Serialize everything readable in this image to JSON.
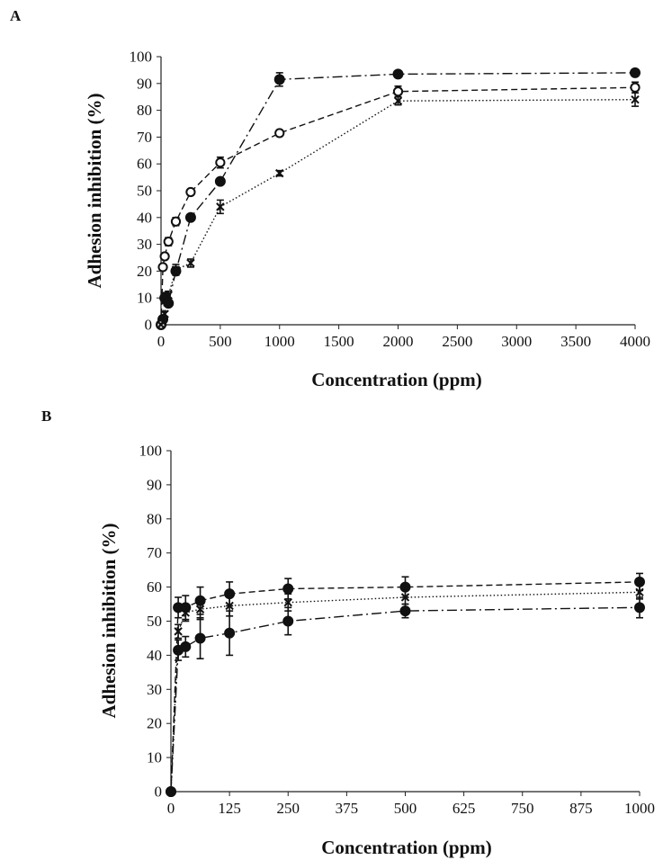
{
  "chart_data": [
    {
      "type": "line",
      "panel_label": "A",
      "xlabel": "Concentration (ppm)",
      "ylabel": "Adhesion inhibition (%)",
      "xlim": [
        0,
        4000
      ],
      "ylim": [
        0,
        100
      ],
      "x_ticks": [
        0,
        500,
        1000,
        1500,
        2000,
        2500,
        3000,
        3500,
        4000
      ],
      "y_ticks": [
        0,
        10,
        20,
        30,
        40,
        50,
        60,
        70,
        80,
        90,
        100
      ],
      "grid": false,
      "series": [
        {
          "marker": "filled-circle",
          "line_style": "dash-dot",
          "x": [
            0,
            15.6,
            31.25,
            62.5,
            125,
            250,
            500,
            1000,
            2000,
            4000
          ],
          "y": [
            0,
            2,
            10,
            8,
            20,
            40,
            53.5,
            91.5,
            93.5,
            94
          ],
          "err": [
            0,
            0.5,
            2,
            1,
            1.5,
            1,
            1,
            2.5,
            0.5,
            0.5
          ]
        },
        {
          "marker": "open-circle",
          "line_style": "dashed",
          "x": [
            0,
            15.6,
            31.25,
            62.5,
            125,
            250,
            500,
            1000,
            2000,
            4000
          ],
          "y": [
            0,
            21.5,
            25.5,
            31,
            38.5,
            49.5,
            60.5,
            71.5,
            87,
            88.5
          ],
          "err": [
            0,
            1,
            1,
            1.5,
            1.5,
            1,
            2,
            1,
            2,
            2
          ]
        },
        {
          "marker": "cross",
          "line_style": "dotted",
          "x": [
            0,
            15.6,
            31.25,
            62.5,
            125,
            250,
            500,
            1000,
            2000,
            4000
          ],
          "y": [
            0,
            1,
            4,
            11,
            20.5,
            23,
            44,
            56.5,
            83.5,
            84
          ],
          "err": [
            0,
            0.5,
            1,
            1.5,
            2,
            1.5,
            2.5,
            1,
            1.5,
            2.5
          ]
        }
      ]
    },
    {
      "type": "line",
      "panel_label": "B",
      "xlabel": "Concentration (ppm)",
      "ylabel": "Adhesion inhibition (%)",
      "xlim": [
        0,
        1000
      ],
      "ylim": [
        0,
        100
      ],
      "x_ticks": [
        0,
        125,
        250,
        375,
        500,
        625,
        750,
        875,
        1000
      ],
      "y_ticks": [
        0,
        10,
        20,
        30,
        40,
        50,
        60,
        70,
        80,
        90,
        100
      ],
      "grid": false,
      "series": [
        {
          "marker": "filled-circle",
          "line_style": "dash-dot",
          "x": [
            0,
            15.6,
            31.25,
            62.5,
            125,
            250,
            500,
            1000
          ],
          "y": [
            0,
            41.5,
            42.5,
            45,
            46.5,
            50,
            53,
            54
          ],
          "err": [
            0,
            3,
            3,
            6,
            6.5,
            4,
            2,
            3
          ]
        },
        {
          "marker": "filled-circle",
          "line_style": "dashed",
          "x": [
            0,
            15.6,
            31.25,
            62.5,
            125,
            250,
            500,
            1000
          ],
          "y": [
            0,
            54,
            54,
            56,
            58,
            59.5,
            60,
            61.5
          ],
          "err": [
            0,
            3,
            3.5,
            4,
            3.5,
            3,
            3,
            2.5
          ]
        },
        {
          "marker": "cross",
          "line_style": "dotted",
          "x": [
            0,
            15.6,
            31.25,
            62.5,
            125,
            250,
            500,
            1000
          ],
          "y": [
            0,
            47,
            52.5,
            53.5,
            54.5,
            55.5,
            57,
            58.5
          ],
          "err": [
            0,
            2,
            2.5,
            3,
            3,
            2.5,
            2,
            2
          ]
        }
      ]
    }
  ]
}
